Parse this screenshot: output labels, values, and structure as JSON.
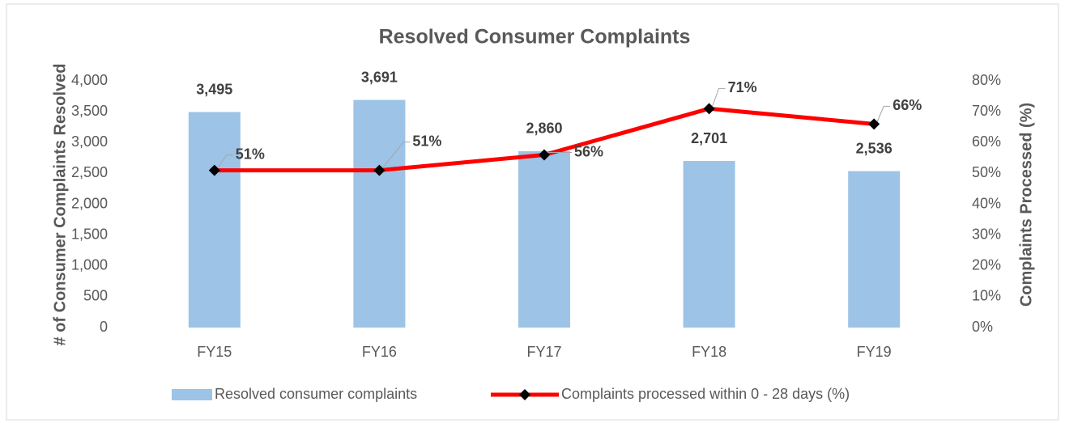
{
  "chart_data": {
    "type": "bar",
    "title": "Resolved Consumer Complaints",
    "categories": [
      "FY15",
      "FY16",
      "FY17",
      "FY18",
      "FY19"
    ],
    "ylabel": "# of Consumer Complaints Resolved",
    "y2label": "Complaints Processed (%)",
    "ylim": [
      0,
      4000
    ],
    "yticks": [
      0,
      500,
      {
        "value": 1000,
        "label": "1,000"
      },
      {
        "value": 1500,
        "label": "1,500"
      },
      {
        "value": 2000,
        "label": "2,000"
      },
      {
        "value": 2500,
        "label": "2,500"
      },
      {
        "value": 3000,
        "label": "3,000"
      },
      {
        "value": 3500,
        "label": "3,500"
      },
      {
        "value": 4000,
        "label": "4,000"
      }
    ],
    "y2lim": [
      0,
      80
    ],
    "y2ticks": [
      {
        "value": 0,
        "label": "0%"
      },
      {
        "value": 10,
        "label": "10%"
      },
      {
        "value": 20,
        "label": "20%"
      },
      {
        "value": 30,
        "label": "30%"
      },
      {
        "value": 40,
        "label": "40%"
      },
      {
        "value": 50,
        "label": "50%"
      },
      {
        "value": 60,
        "label": "60%"
      },
      {
        "value": 70,
        "label": "70%"
      },
      {
        "value": 80,
        "label": "80%"
      }
    ],
    "grid": false,
    "legend": "bottom",
    "series": [
      {
        "name": "Resolved consumer complaints",
        "type": "bar",
        "color": "#9dc3e6",
        "values": [
          3495,
          3691,
          2860,
          2701,
          2536
        ],
        "value_labels": [
          "3,495",
          "3,691",
          "2,860",
          "2,701",
          "2,536"
        ]
      },
      {
        "name": "Complaints processed within 0 - 28 days (%)",
        "type": "line",
        "axis": "y2",
        "color": "#ff0000",
        "marker_color": "#000000",
        "values": [
          51,
          51,
          56,
          71,
          66
        ],
        "value_labels": [
          "51%",
          "51%",
          "56%",
          "71%",
          "66%"
        ]
      }
    ]
  }
}
